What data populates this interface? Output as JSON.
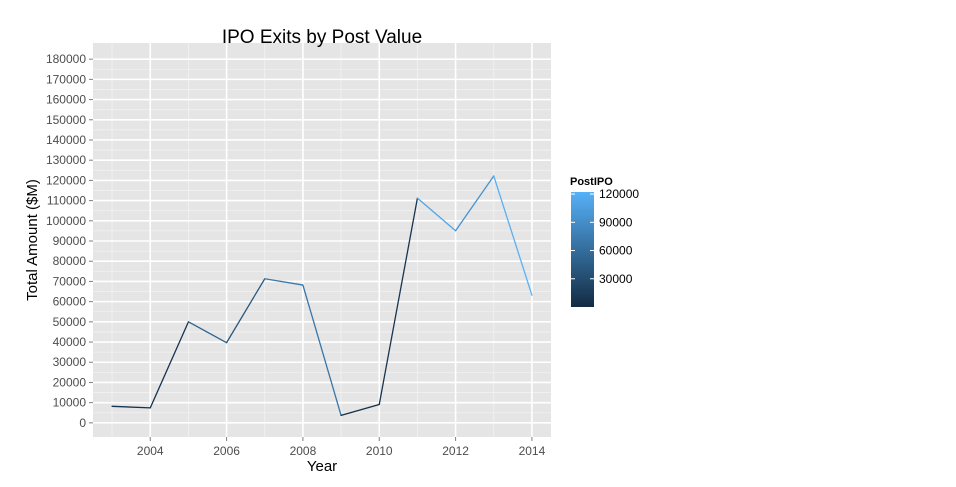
{
  "chart_data": {
    "type": "line",
    "title": "IPO Exits by Post Value",
    "xlabel": "Year",
    "ylabel": "Total Amount ($M)",
    "xlim": [
      2002.5,
      2014.5
    ],
    "ylim": [
      -7000,
      188000
    ],
    "x_ticks": [
      2004,
      2006,
      2008,
      2010,
      2012,
      2014
    ],
    "y_ticks": [
      0,
      10000,
      20000,
      30000,
      40000,
      50000,
      60000,
      70000,
      80000,
      90000,
      100000,
      110000,
      120000,
      130000,
      140000,
      150000,
      160000,
      170000,
      180000
    ],
    "grid": true,
    "series": [
      {
        "x": [
          2003,
          2004,
          2005,
          2006,
          2007,
          2008,
          2009,
          2010,
          2011,
          2012,
          2013,
          2014
        ],
        "y": [
          8200,
          7400,
          50000,
          39700,
          71300,
          68200,
          3700,
          9100,
          111200,
          95100,
          122200,
          63200
        ],
        "color_variable": "PostIPO"
      }
    ],
    "legend": {
      "title": "PostIPO",
      "position": "right",
      "scale_min": 0,
      "scale_max": 122200,
      "breaks": [
        30000,
        60000,
        90000,
        120000
      ],
      "color_low": "#132b43",
      "color_high": "#56b1f7"
    },
    "colors": {
      "panel_bg": "#e5e5e5",
      "grid_major": "#ffffff",
      "grid_minor": "#f2f2f2"
    }
  }
}
